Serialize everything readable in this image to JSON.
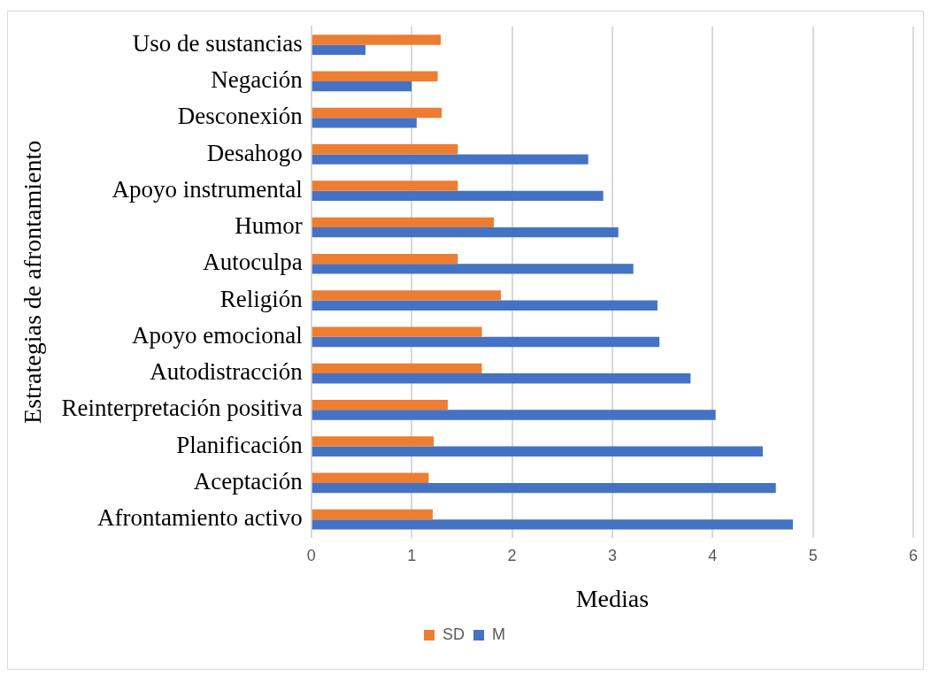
{
  "chart_data": {
    "type": "bar",
    "orientation": "horizontal",
    "xlabel": "Medias",
    "ylabel": "Estrategias de afrontamiento",
    "categories": [
      "Uso de sustancias",
      "Negación",
      "Desconexión",
      "Desahogo",
      "Apoyo instrumental",
      "Humor",
      "Autoculpa",
      "Religión",
      "Apoyo emocional",
      "Autodistracción",
      "Reinterpretación positiva",
      "Planificación",
      "Aceptación",
      "Afrontamiento activo"
    ],
    "series": [
      {
        "name": "SD",
        "color": "#ed7d31",
        "values": [
          1.29,
          1.26,
          1.3,
          1.46,
          1.46,
          1.82,
          1.46,
          1.89,
          1.7,
          1.7,
          1.36,
          1.22,
          1.17,
          1.21
        ]
      },
      {
        "name": "M",
        "color": "#4472c4",
        "values": [
          0.54,
          1.0,
          1.05,
          2.76,
          2.91,
          3.06,
          3.21,
          3.45,
          3.47,
          3.78,
          4.03,
          4.5,
          4.63,
          4.8
        ]
      }
    ],
    "xlim": [
      0,
      6
    ],
    "xticks": [
      0,
      1,
      2,
      3,
      4,
      5,
      6
    ],
    "grid": "x",
    "legend": "bottom"
  }
}
